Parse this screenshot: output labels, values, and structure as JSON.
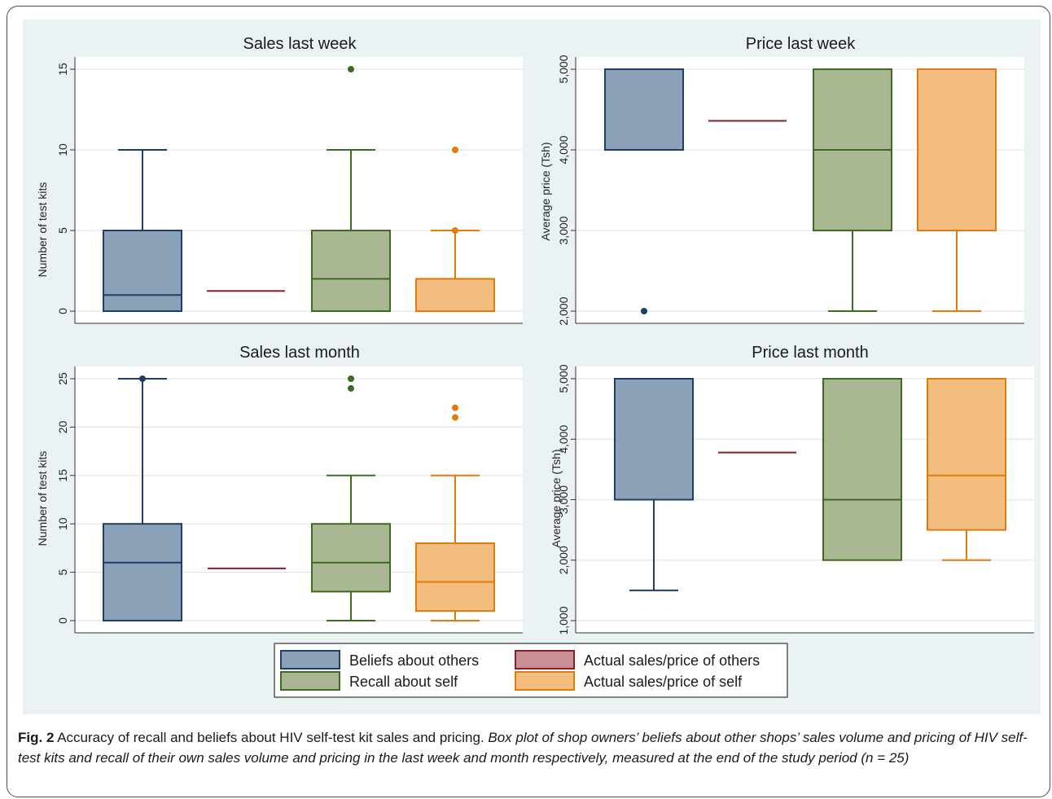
{
  "caption": {
    "label": "Fig. 2",
    "title": "Accuracy of recall and beliefs about HIV self-test kit sales and pricing.",
    "description": "Box plot of shop owners’ beliefs about other shops’ sales volume and pricing of HIV self-test kits and recall of their own sales volume and pricing in the last week and month respectively, measured at the end of the study period (n = 25)"
  },
  "legend": {
    "items": [
      {
        "label": "Beliefs about others",
        "color": "#8aa1b8",
        "stroke": "#1d3f66"
      },
      {
        "label": "Actual sales/price of others",
        "color": "#c98f96",
        "stroke": "#8b1d2c"
      },
      {
        "label": "Recall about self",
        "color": "#a9b893",
        "stroke": "#3e6b22"
      },
      {
        "label": "Actual sales/price of self",
        "color": "#f2bd7e",
        "stroke": "#e07b0f"
      }
    ]
  },
  "chart_data": [
    {
      "type": "box",
      "title": "Sales last week",
      "ylabel": "Number of test kits",
      "ylim": [
        0,
        15
      ],
      "yticks": [
        0,
        5,
        10,
        15
      ],
      "ytick_labels": [
        "0",
        "5",
        "10",
        "15"
      ],
      "series": [
        {
          "name": "Beliefs about others",
          "min": 0,
          "q1": 0,
          "median": 1,
          "q3": 5,
          "max": 10,
          "outliers": []
        },
        {
          "name": "Actual sales/price of others",
          "value": 1.25
        },
        {
          "name": "Recall about self",
          "min": 0,
          "q1": 0,
          "median": 2,
          "q3": 5,
          "max": 10,
          "outliers": [
            15
          ]
        },
        {
          "name": "Actual sales/price of self",
          "min": 0,
          "q1": 0,
          "median": 2,
          "q3": 2,
          "max": 5,
          "outliers": [
            5,
            10
          ]
        }
      ]
    },
    {
      "type": "box",
      "title": "Price last week",
      "ylabel": "Average price (Tsh)",
      "ylim": [
        2000,
        5000
      ],
      "yticks": [
        2000,
        3000,
        4000,
        5000
      ],
      "ytick_labels": [
        "2,000",
        "3,000",
        "4,000",
        "5,000"
      ],
      "series": [
        {
          "name": "Beliefs about others",
          "min": 4000,
          "q1": 4000,
          "median": 5000,
          "q3": 5000,
          "max": 5000,
          "outliers": [
            2000
          ]
        },
        {
          "name": "Actual sales/price of others",
          "value": 4360
        },
        {
          "name": "Recall about self",
          "min": 2000,
          "q1": 3000,
          "median": 4000,
          "q3": 5000,
          "max": 5000,
          "outliers": []
        },
        {
          "name": "Actual sales/price of self",
          "min": 2000,
          "q1": 3000,
          "median": 5000,
          "q3": 5000,
          "max": 5000,
          "outliers": []
        }
      ]
    },
    {
      "type": "box",
      "title": "Sales last month",
      "ylabel": "Number of test kits",
      "ylim": [
        0,
        25
      ],
      "yticks": [
        0,
        5,
        10,
        15,
        20,
        25
      ],
      "ytick_labels": [
        "0",
        "5",
        "10",
        "15",
        "20",
        "25"
      ],
      "series": [
        {
          "name": "Beliefs about others",
          "min": 0,
          "q1": 0,
          "median": 6,
          "q3": 10,
          "max": 25,
          "outliers": [
            25
          ]
        },
        {
          "name": "Actual sales/price of others",
          "value": 5.4
        },
        {
          "name": "Recall about self",
          "min": 0,
          "q1": 3,
          "median": 6,
          "q3": 10,
          "max": 15,
          "outliers": [
            24,
            25
          ]
        },
        {
          "name": "Actual sales/price of self",
          "min": 0,
          "q1": 1,
          "median": 4,
          "q3": 8,
          "max": 15,
          "outliers": [
            21,
            22
          ]
        }
      ]
    },
    {
      "type": "box",
      "title": "Price last month",
      "ylabel": "Average price (Tsh)",
      "ylim": [
        1000,
        5000
      ],
      "yticks": [
        1000,
        2000,
        3000,
        4000,
        5000
      ],
      "ytick_labels": [
        "1,000",
        "2,000",
        "3,000",
        "4,000",
        "5,000"
      ],
      "series": [
        {
          "name": "Beliefs about others",
          "min": 1500,
          "q1": 3000,
          "median": 5000,
          "q3": 5000,
          "max": 5000,
          "outliers": []
        },
        {
          "name": "Actual sales/price of others",
          "value": 3780
        },
        {
          "name": "Recall about self",
          "min": 2000,
          "q1": 2000,
          "median": 3000,
          "q3": 5000,
          "max": 5000,
          "outliers": []
        },
        {
          "name": "Actual sales/price of self",
          "min": 2000,
          "q1": 2500,
          "median": 3400,
          "q3": 5000,
          "max": 5000,
          "outliers": []
        }
      ]
    }
  ]
}
